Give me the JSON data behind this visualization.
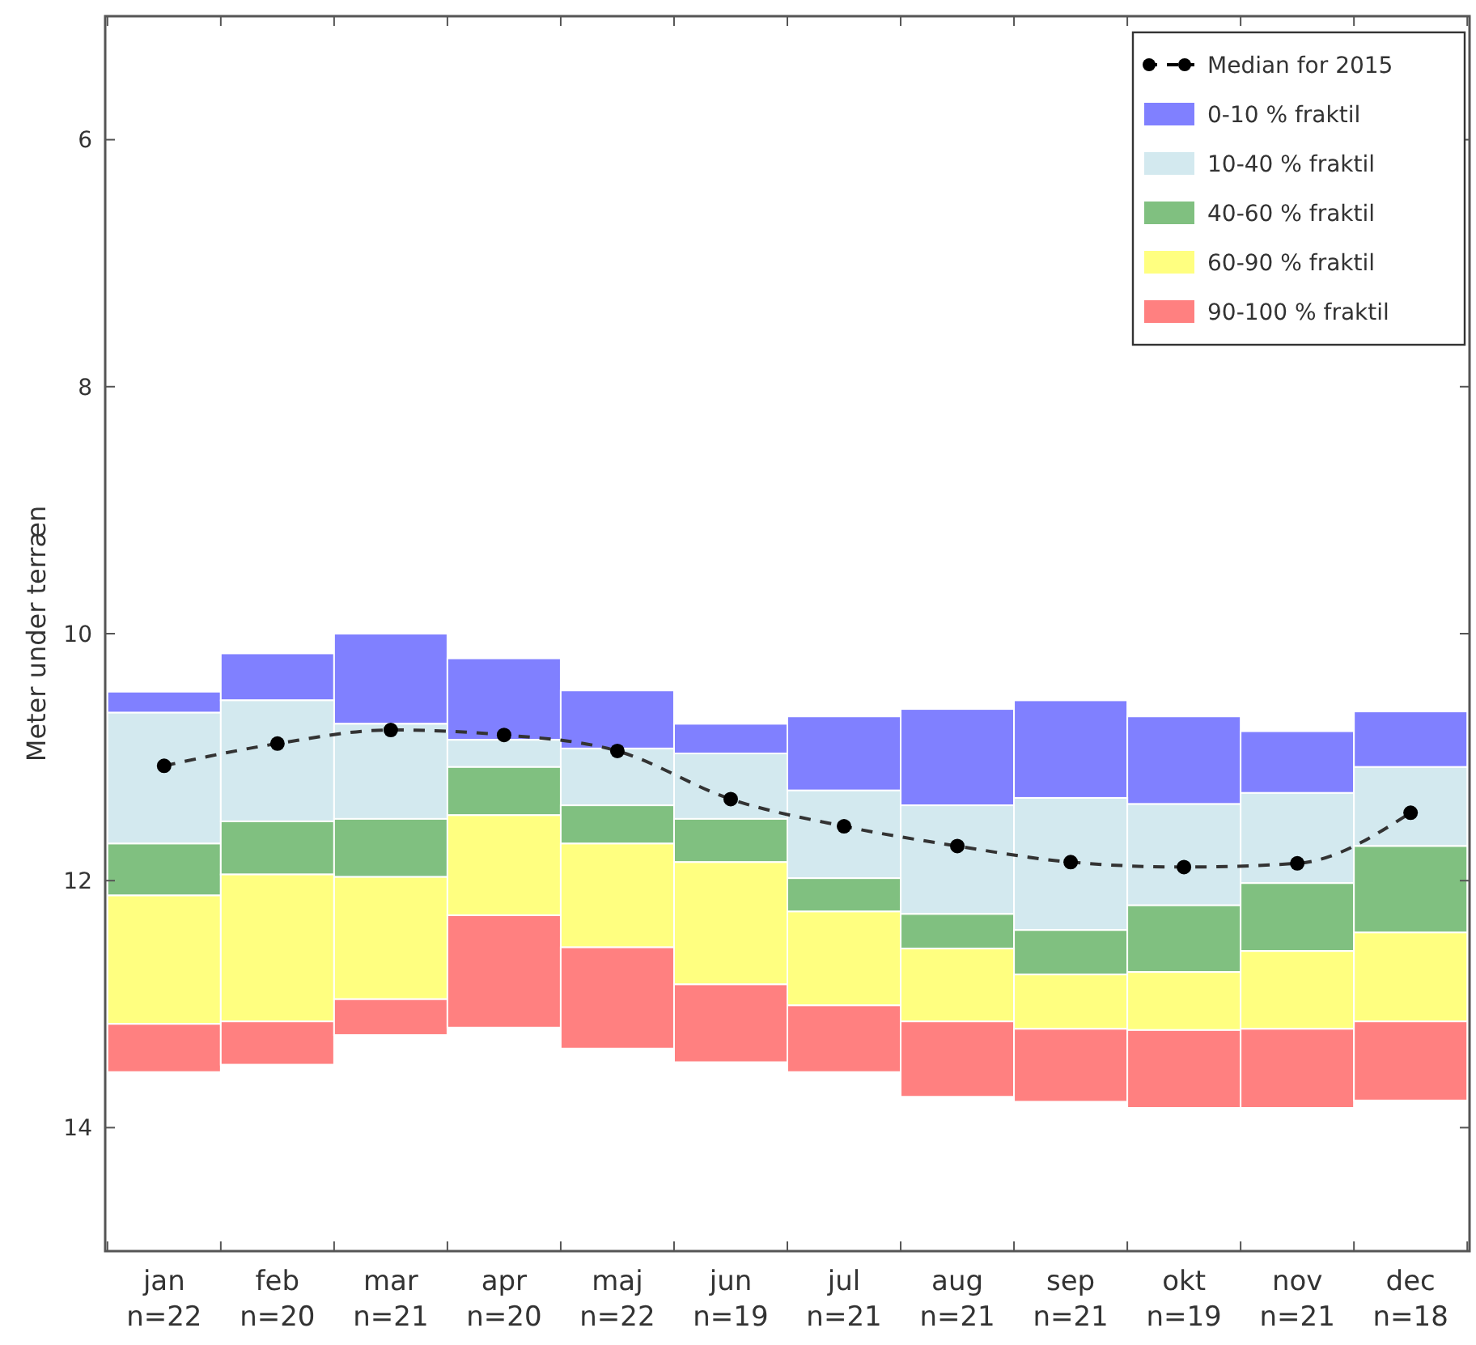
{
  "chart_data": {
    "type": "bar",
    "ylabel": "Meter under terræn",
    "categories": [
      "jan\nn=22",
      "feb\nn=20",
      "mar\nn=21",
      "apr\nn=20",
      "maj\nn=22",
      "jun\nn=19",
      "jul\nn=21",
      "aug\nn=21",
      "sep\nn=21",
      "okt\nn=19",
      "nov\nn=21",
      "dec\nn=18"
    ],
    "series": [
      {
        "name": "Median for 2015",
        "type": "line",
        "color": "#000000",
        "marker": "circle",
        "line_style": "dashed",
        "values": [
          11.07,
          10.89,
          10.78,
          10.82,
          10.95,
          11.34,
          11.56,
          11.72,
          11.85,
          11.89,
          11.86,
          11.45
        ]
      },
      {
        "name": "0-10 % fraktil",
        "color": "#8080ff",
        "base": [
          10.47,
          10.16,
          10.0,
          10.2,
          10.46,
          10.73,
          10.67,
          10.61,
          10.54,
          10.67,
          10.79,
          10.63
        ],
        "values": [
          0.17,
          0.38,
          0.73,
          0.66,
          0.47,
          0.24,
          0.6,
          0.78,
          0.79,
          0.71,
          0.5,
          0.45
        ]
      },
      {
        "name": "10-40 % fraktil",
        "color": "#d3e9ef",
        "base": [
          10.64,
          10.54,
          10.73,
          10.86,
          10.93,
          10.97,
          11.27,
          11.39,
          11.33,
          11.38,
          11.29,
          11.08
        ],
        "values": [
          1.06,
          0.98,
          0.77,
          0.22,
          0.46,
          0.53,
          0.71,
          0.88,
          1.07,
          0.82,
          0.73,
          0.64
        ]
      },
      {
        "name": "40-60 % fraktil",
        "color": "#80c080",
        "base": [
          11.7,
          11.52,
          11.5,
          11.08,
          11.39,
          11.5,
          11.98,
          12.27,
          12.4,
          12.2,
          12.02,
          11.72
        ],
        "values": [
          0.42,
          0.43,
          0.47,
          0.39,
          0.31,
          0.35,
          0.27,
          0.28,
          0.36,
          0.54,
          0.55,
          0.7
        ]
      },
      {
        "name": "60-90 % fraktil",
        "color": "#ffff80",
        "base": [
          12.12,
          11.95,
          11.97,
          11.47,
          11.7,
          11.85,
          12.25,
          12.55,
          12.76,
          12.74,
          12.57,
          12.42
        ],
        "values": [
          1.04,
          1.19,
          0.99,
          0.81,
          0.84,
          0.99,
          0.76,
          0.59,
          0.44,
          0.47,
          0.63,
          0.72
        ]
      },
      {
        "name": "90-100 % fraktil",
        "color": "#ff8080",
        "base": [
          13.16,
          13.14,
          12.96,
          12.28,
          12.54,
          12.84,
          13.01,
          13.14,
          13.2,
          13.21,
          13.2,
          13.14
        ],
        "values": [
          0.39,
          0.35,
          0.29,
          0.91,
          0.82,
          0.63,
          0.54,
          0.61,
          0.59,
          0.63,
          0.64,
          0.64
        ]
      }
    ],
    "ylim": [
      15,
      5
    ],
    "yticks": [
      6,
      8,
      10,
      12,
      14
    ],
    "grid": false,
    "legend": "top right"
  }
}
